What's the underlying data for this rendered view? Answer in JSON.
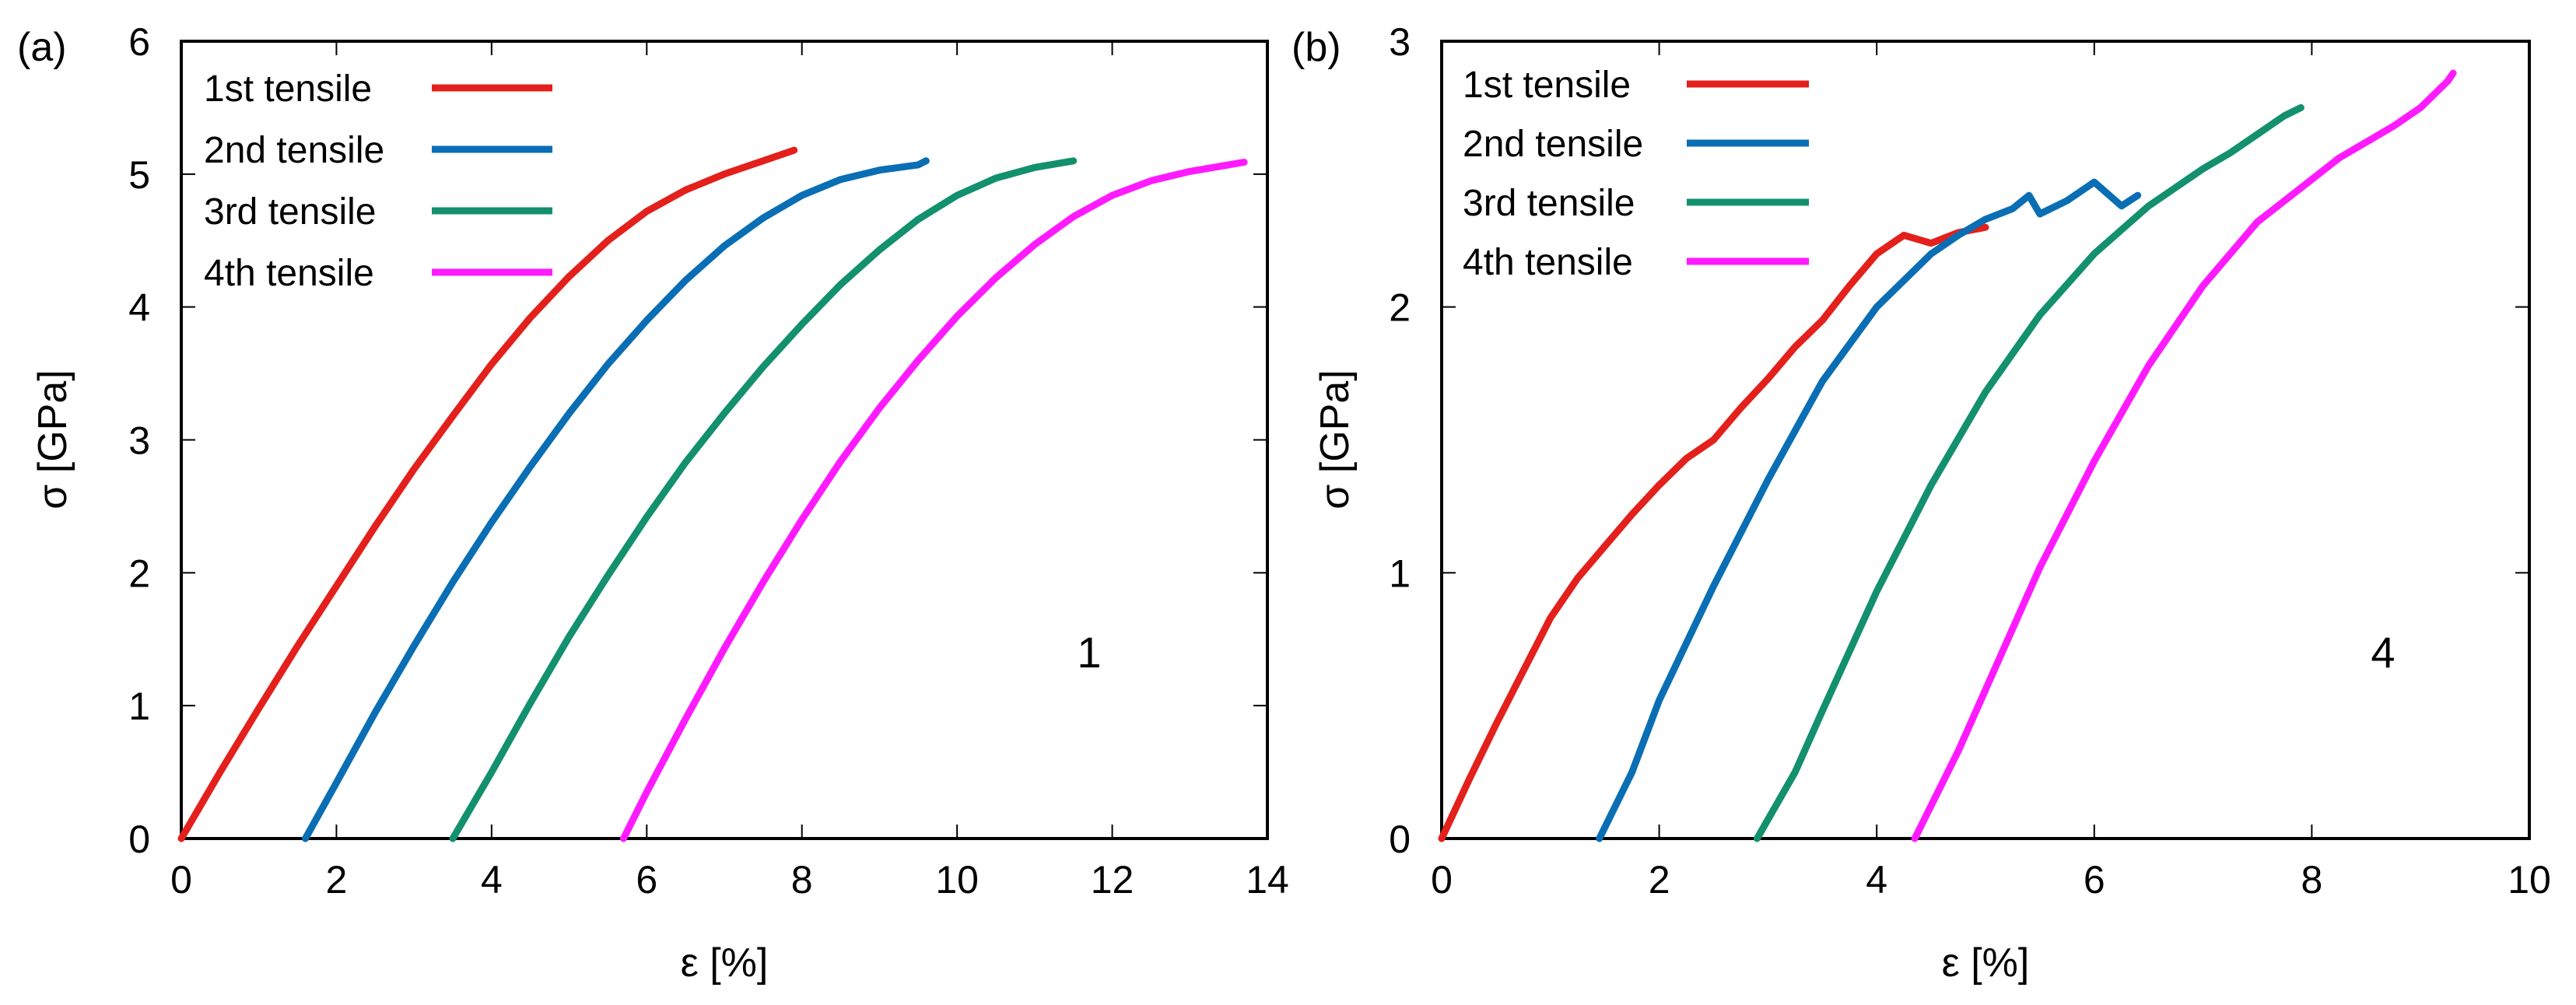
{
  "chart_data": [
    {
      "type": "line",
      "panel_label": "(a)",
      "title": "",
      "xlabel": "ε [%]",
      "ylabel": "σ [GPa]",
      "xlim": [
        0,
        14
      ],
      "ylim": [
        0,
        6
      ],
      "xticks": [
        0,
        2,
        4,
        6,
        8,
        10,
        12,
        14
      ],
      "yticks": [
        0,
        1,
        2,
        3,
        4,
        5,
        6
      ],
      "grid": false,
      "legend_position": "top-left",
      "annotation": "1",
      "series": [
        {
          "name": "1st tensile",
          "color": "#e3201b",
          "x": [
            0,
            0.5,
            1,
            1.5,
            2,
            2.5,
            3,
            3.5,
            4,
            4.5,
            5,
            5.5,
            6,
            6.5,
            7,
            7.5,
            7.9
          ],
          "y": [
            0,
            0.5,
            0.98,
            1.45,
            1.9,
            2.35,
            2.78,
            3.18,
            3.57,
            3.92,
            4.23,
            4.5,
            4.72,
            4.88,
            5.0,
            5.1,
            5.18
          ]
        },
        {
          "name": "2nd tensile",
          "color": "#0a6eb4",
          "x": [
            1.6,
            2,
            2.5,
            3,
            3.5,
            4,
            4.5,
            5,
            5.5,
            6,
            6.5,
            7,
            7.5,
            8,
            8.5,
            9,
            9.5,
            9.6
          ],
          "y": [
            0,
            0.42,
            0.95,
            1.45,
            1.93,
            2.38,
            2.8,
            3.2,
            3.57,
            3.9,
            4.2,
            4.46,
            4.67,
            4.84,
            4.96,
            5.03,
            5.07,
            5.1
          ]
        },
        {
          "name": "3rd tensile",
          "color": "#13906e",
          "x": [
            3.5,
            4,
            4.5,
            5,
            5.5,
            6,
            6.5,
            7,
            7.5,
            8,
            8.5,
            9,
            9.5,
            10,
            10.5,
            11,
            11.5
          ],
          "y": [
            0,
            0.5,
            1.02,
            1.52,
            1.98,
            2.42,
            2.83,
            3.2,
            3.55,
            3.87,
            4.17,
            4.43,
            4.66,
            4.84,
            4.97,
            5.05,
            5.1
          ]
        },
        {
          "name": "4th tensile",
          "color": "#ff1aff",
          "x": [
            5.7,
            6,
            6.5,
            7,
            7.5,
            8,
            8.5,
            9,
            9.5,
            10,
            10.5,
            11,
            11.5,
            12,
            12.5,
            13,
            13.5,
            13.7
          ],
          "y": [
            0,
            0.35,
            0.9,
            1.43,
            1.93,
            2.4,
            2.84,
            3.24,
            3.6,
            3.93,
            4.22,
            4.47,
            4.68,
            4.84,
            4.95,
            5.02,
            5.07,
            5.09
          ]
        }
      ]
    },
    {
      "type": "line",
      "panel_label": "(b)",
      "title": "",
      "xlabel": "ε [%]",
      "ylabel": "σ [GPa]",
      "xlim": [
        0,
        10
      ],
      "ylim": [
        0,
        3
      ],
      "xticks": [
        0,
        2,
        4,
        6,
        8,
        10
      ],
      "yticks": [
        0,
        1,
        2,
        3
      ],
      "grid": false,
      "legend_position": "top-left",
      "annotation": "4",
      "series": [
        {
          "name": "1st tensile",
          "color": "#e3201b",
          "x": [
            0,
            0.25,
            0.5,
            0.75,
            1,
            1.25,
            1.5,
            1.75,
            2,
            2.25,
            2.5,
            2.75,
            3,
            3.25,
            3.5,
            3.75,
            4,
            4.25,
            4.5,
            4.75,
            5
          ],
          "y": [
            0,
            0.22,
            0.43,
            0.63,
            0.83,
            0.98,
            1.1,
            1.22,
            1.33,
            1.43,
            1.5,
            1.62,
            1.73,
            1.85,
            1.95,
            2.08,
            2.2,
            2.27,
            2.24,
            2.28,
            2.3
          ]
        },
        {
          "name": "2nd tensile",
          "color": "#0a6eb4",
          "x": [
            1.45,
            1.75,
            2,
            2.5,
            3,
            3.5,
            4,
            4.5,
            4.75,
            5,
            5.25,
            5.4,
            5.5,
            5.75,
            6,
            6.25,
            6.4
          ],
          "y": [
            0,
            0.25,
            0.52,
            0.95,
            1.35,
            1.72,
            2.0,
            2.2,
            2.27,
            2.33,
            2.37,
            2.42,
            2.35,
            2.4,
            2.47,
            2.38,
            2.42
          ]
        },
        {
          "name": "3rd tensile",
          "color": "#13906e",
          "x": [
            2.9,
            3.25,
            3.5,
            4,
            4.5,
            5,
            5.5,
            6,
            6.5,
            7,
            7.25,
            7.5,
            7.75,
            7.9
          ],
          "y": [
            0,
            0.25,
            0.48,
            0.93,
            1.33,
            1.68,
            1.97,
            2.2,
            2.38,
            2.52,
            2.58,
            2.65,
            2.72,
            2.75
          ]
        },
        {
          "name": "4th tensile",
          "color": "#ff1aff",
          "x": [
            4.35,
            4.75,
            5,
            5.5,
            6,
            6.5,
            7,
            7.5,
            8,
            8.25,
            8.5,
            8.75,
            9,
            9.25,
            9.3
          ],
          "y": [
            0,
            0.33,
            0.56,
            1.02,
            1.42,
            1.78,
            2.08,
            2.32,
            2.48,
            2.56,
            2.62,
            2.68,
            2.75,
            2.85,
            2.88
          ]
        }
      ]
    }
  ]
}
